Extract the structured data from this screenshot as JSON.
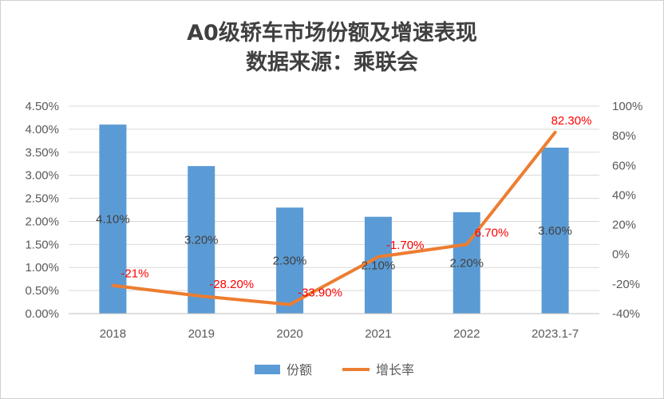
{
  "chart_data": {
    "type": "bar+line",
    "title": "A0级轿车市场份额及增速表现",
    "subtitle": "数据来源：乘联会",
    "categories": [
      "2018",
      "2019",
      "2020",
      "2021",
      "2022",
      "2023.1-7"
    ],
    "series": [
      {
        "name": "份额",
        "type": "bar",
        "axis": "left",
        "values": [
          4.1,
          3.2,
          2.3,
          2.1,
          2.2,
          3.6
        ],
        "labels": [
          "4.10%",
          "3.20%",
          "2.30%",
          "2.10%",
          "2.20%",
          "3.60%"
        ],
        "color": "#5b9bd5"
      },
      {
        "name": "增长率",
        "type": "line",
        "axis": "right",
        "values": [
          -21,
          -28.2,
          -33.9,
          -1.7,
          6.7,
          82.3
        ],
        "labels": [
          "-21%",
          "-28.20%",
          "-33.90%",
          "-1.70%",
          "6.70%",
          "82.30%"
        ],
        "color": "#ed7d31",
        "label_color": "#ff0000"
      }
    ],
    "y_left": {
      "ylim": [
        0,
        4.5
      ],
      "ticks": [
        "0.00%",
        "0.50%",
        "1.00%",
        "1.50%",
        "2.00%",
        "2.50%",
        "3.00%",
        "3.50%",
        "4.00%",
        "4.50%"
      ]
    },
    "y_right": {
      "ylim": [
        -40,
        100
      ],
      "ticks": [
        "-40%",
        "-20%",
        "0%",
        "20%",
        "40%",
        "60%",
        "80%",
        "100%"
      ]
    },
    "grid": true,
    "legend": "bottom"
  }
}
